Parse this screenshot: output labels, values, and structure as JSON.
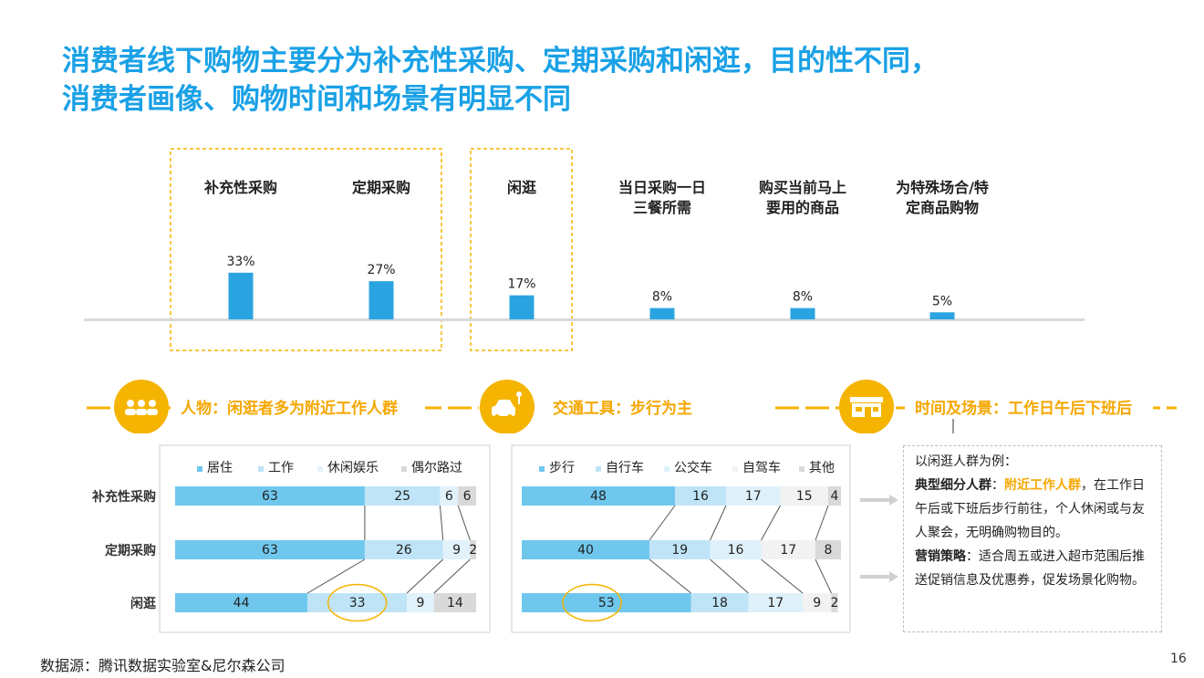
{
  "title": {
    "line1": "消费者线下购物主要分为补充性采购、定期采购和闲逛，目的性不同，",
    "line2": "消费者画像、购物时间和场景有明显不同"
  },
  "chart_data": [
    {
      "type": "bar",
      "categories": [
        "补充性采购",
        "定期采购",
        "闲逛",
        "当日采购一日三餐所需",
        "购买当前马上要用的商品",
        "为特殊场合/特定商品购物"
      ],
      "values": [
        33,
        27,
        17,
        8,
        8,
        5
      ],
      "value_labels": [
        "33%",
        "27%",
        "17%",
        "8%",
        "8%",
        "5%"
      ],
      "category_label_lines": [
        [
          "补充性采购"
        ],
        [
          "定期采购"
        ],
        [
          "闲逛"
        ],
        [
          "当日采购一日",
          "三餐所需"
        ],
        [
          "购买当前马上",
          "要用的商品"
        ],
        [
          "为特殊场合/特",
          "定商品购物"
        ]
      ],
      "color": "#2aa4e0"
    },
    {
      "type": "bar",
      "orientation": "horizontal-stacked",
      "categories": [
        "补充性采购",
        "定期采购",
        "闲逛"
      ],
      "series": [
        {
          "name": "居住",
          "values": [
            63,
            63,
            44
          ],
          "color": "#6fc7ee"
        },
        {
          "name": "工作",
          "values": [
            25,
            26,
            33
          ],
          "color": "#bfe4f7"
        },
        {
          "name": "休闲娱乐",
          "values": [
            6,
            9,
            9
          ],
          "color": "#e1f2fb"
        },
        {
          "name": "偶尔路过",
          "values": [
            6,
            2,
            14
          ],
          "color": "#d9d9d9"
        }
      ],
      "highlight": {
        "category": "闲逛",
        "series": "工作"
      }
    },
    {
      "type": "bar",
      "orientation": "horizontal-stacked",
      "categories": [
        "补充性采购",
        "定期采购",
        "闲逛"
      ],
      "series": [
        {
          "name": "步行",
          "values": [
            48,
            40,
            53
          ],
          "color": "#6fc7ee"
        },
        {
          "name": "自行车",
          "values": [
            16,
            19,
            18
          ],
          "color": "#bfe4f7"
        },
        {
          "name": "公交车",
          "values": [
            17,
            16,
            17
          ],
          "color": "#def1fb"
        },
        {
          "name": "自驾车",
          "values": [
            15,
            17,
            9
          ],
          "color": "#f2f2f2"
        },
        {
          "name": "其他",
          "values": [
            4,
            8,
            2
          ],
          "color": "#d9d9d9"
        }
      ],
      "highlight": {
        "category": "闲逛",
        "series": "步行"
      }
    }
  ],
  "sections": {
    "people": "人物：闲逛者多为附近工作人群",
    "transport": "交通工具：步行为主",
    "time": "时间及场景：工作日午后下班后",
    "accent_color": "#f5b400"
  },
  "icons": {
    "people": "people-group-icon",
    "transport": "car-bike-icon",
    "time": "storefront-icon"
  },
  "scenario": {
    "intro": "以闲逛人群为例：",
    "segment_label": "典型细分人群",
    "colon": "：",
    "segment_highlight": "附近工作人群",
    "segment_text": "，在工作日午后或下班后步行前往，个人休闲或与友人聚会，无明确购物目的。",
    "strategy_label": "营销策略",
    "strategy_text": "：适合周五或进入超市范围后推送促销信息及优惠券，促发场景化购物。"
  },
  "source": "数据源：腾讯数据实验室&尼尔森公司",
  "page_number": "16"
}
